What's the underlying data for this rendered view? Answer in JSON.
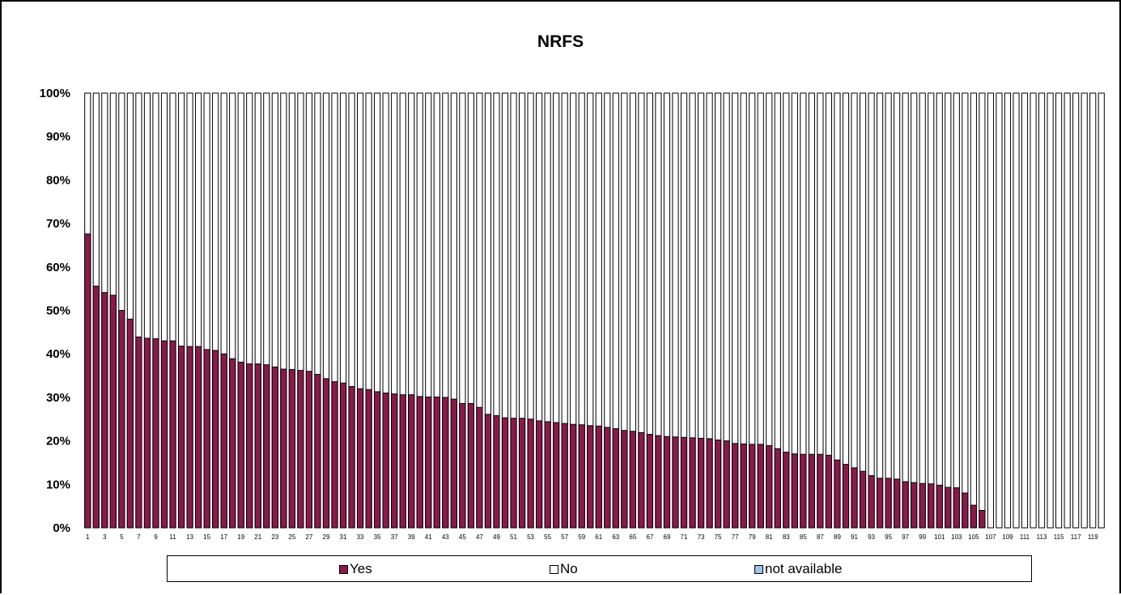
{
  "chart_data": {
    "type": "bar",
    "stacked": "percent",
    "title": "NRFS",
    "xlabel": "",
    "ylabel": "",
    "ylim": [
      0,
      100
    ],
    "y_tick_labels": [
      "0%",
      "10%",
      "20%",
      "30%",
      "40%",
      "50%",
      "60%",
      "70%",
      "80%",
      "90%",
      "100%"
    ],
    "categories": [
      1,
      2,
      3,
      4,
      5,
      6,
      7,
      8,
      9,
      10,
      11,
      12,
      13,
      14,
      15,
      16,
      17,
      18,
      19,
      20,
      21,
      22,
      23,
      24,
      25,
      26,
      27,
      28,
      29,
      30,
      31,
      32,
      33,
      34,
      35,
      36,
      37,
      38,
      39,
      40,
      41,
      42,
      43,
      44,
      45,
      46,
      47,
      48,
      49,
      50,
      51,
      52,
      53,
      54,
      55,
      56,
      57,
      58,
      59,
      60,
      61,
      62,
      63,
      64,
      65,
      66,
      67,
      68,
      69,
      70,
      71,
      72,
      73,
      74,
      75,
      76,
      77,
      78,
      79,
      80,
      81,
      82,
      83,
      84,
      85,
      86,
      87,
      88,
      89,
      90,
      91,
      92,
      93,
      94,
      95,
      96,
      97,
      98,
      99,
      100,
      101,
      102,
      103,
      104,
      105,
      106,
      107,
      108,
      109,
      110,
      111,
      112,
      113,
      114,
      115,
      116,
      117,
      118,
      119,
      120
    ],
    "x_tick_labels": [
      "1",
      "3",
      "5",
      "7",
      "9",
      "11",
      "13",
      "15",
      "17",
      "19",
      "21",
      "23",
      "25",
      "27",
      "29",
      "31",
      "33",
      "35",
      "37",
      "39",
      "41",
      "43",
      "45",
      "47",
      "49",
      "51",
      "53",
      "55",
      "57",
      "59",
      "61",
      "63",
      "65",
      "67",
      "69",
      "71",
      "73",
      "75",
      "77",
      "79",
      "81",
      "83",
      "85",
      "87",
      "89",
      "91",
      "93",
      "95",
      "97",
      "99",
      "101",
      "103",
      "105",
      "107",
      "109",
      "111",
      "113",
      "115",
      "117",
      "119"
    ],
    "series": [
      {
        "name": "Yes",
        "values": [
          67.6,
          55.6,
          54.1,
          53.5,
          50.0,
          48.0,
          43.9,
          43.6,
          43.5,
          43.0,
          43.0,
          41.8,
          41.7,
          41.7,
          41.0,
          40.8,
          40.0,
          38.9,
          38.1,
          37.7,
          37.7,
          37.5,
          37.0,
          36.5,
          36.4,
          36.2,
          36.0,
          35.3,
          34.3,
          33.6,
          33.3,
          32.5,
          32.0,
          31.8,
          31.3,
          31.0,
          30.8,
          30.6,
          30.6,
          30.2,
          30.1,
          30.1,
          30.0,
          29.6,
          28.6,
          28.6,
          27.7,
          26.1,
          25.8,
          25.3,
          25.2,
          25.2,
          25.0,
          24.6,
          24.4,
          24.2,
          24.0,
          23.8,
          23.7,
          23.5,
          23.4,
          23.1,
          22.8,
          22.4,
          22.2,
          21.9,
          21.5,
          21.2,
          21.0,
          20.9,
          20.8,
          20.7,
          20.6,
          20.5,
          20.2,
          20.0,
          19.4,
          19.3,
          19.2,
          19.2,
          18.9,
          18.2,
          17.4,
          17.0,
          16.9,
          16.9,
          16.9,
          16.7,
          15.6,
          14.6,
          13.8,
          13.0,
          12.0,
          11.4,
          11.4,
          11.2,
          10.6,
          10.4,
          10.2,
          10.1,
          9.8,
          9.3,
          9.2,
          8.0,
          5.2,
          4.0,
          0,
          0,
          0,
          0,
          0,
          0,
          0,
          0,
          0,
          0,
          0,
          0,
          0,
          0
        ]
      },
      {
        "name": "No"
      },
      {
        "name": "not available"
      }
    ],
    "colors": {
      "Yes": "#8B1A4A",
      "No": "#FFFFFF",
      "not available": "#9DC3E6",
      "outline": "#000000"
    },
    "grid": false,
    "legend_position": "bottom"
  }
}
